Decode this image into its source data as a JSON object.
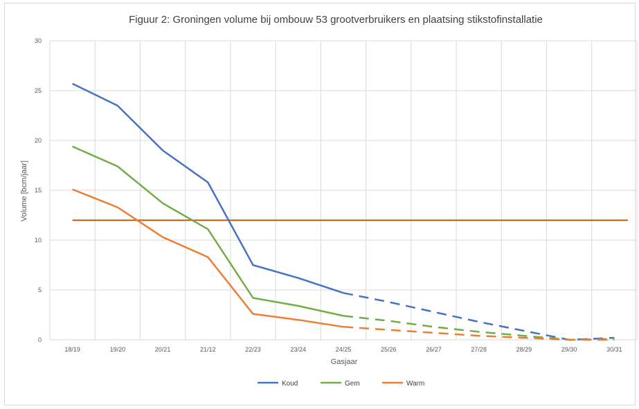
{
  "chart_data": {
    "type": "line",
    "title": "Figuur 2: Groningen volume  bij ombouw 53 grootverbruikers en plaatsing stikstofinstallatie",
    "xlabel": "Gasjaar",
    "ylabel": "Volume [bcm/jaar]",
    "categories": [
      "18/19",
      "19/20",
      "20/21",
      "21/12",
      "22/23",
      "23/24",
      "24/25",
      "25/26",
      "26/27",
      "27/28",
      "28/29",
      "29/30",
      "30/31"
    ],
    "ylim": [
      0,
      30
    ],
    "yticks": [
      "0",
      "5",
      "10",
      "15",
      "20",
      "25",
      "30"
    ],
    "grid": true,
    "legend_position": "bottom",
    "dashed_from_category": "24/25",
    "series": [
      {
        "name": "Koud",
        "color": "#4472C4",
        "values": [
          25.7,
          23.5,
          19.0,
          15.8,
          7.5,
          6.2,
          4.7,
          3.8,
          2.8,
          1.8,
          0.9,
          0.0,
          0.2
        ]
      },
      {
        "name": "Gem",
        "color": "#70AD47",
        "values": [
          19.4,
          17.4,
          13.7,
          11.1,
          4.2,
          3.4,
          2.4,
          1.9,
          1.3,
          0.8,
          0.4,
          0.0,
          0.1
        ]
      },
      {
        "name": "Warm",
        "color": "#ED7D31",
        "values": [
          15.1,
          13.3,
          10.3,
          8.3,
          2.6,
          2.0,
          1.3,
          1.0,
          0.7,
          0.4,
          0.2,
          0.0,
          0.0
        ]
      }
    ],
    "reference_line": {
      "value": 12.0,
      "color": "#C55A11"
    }
  }
}
